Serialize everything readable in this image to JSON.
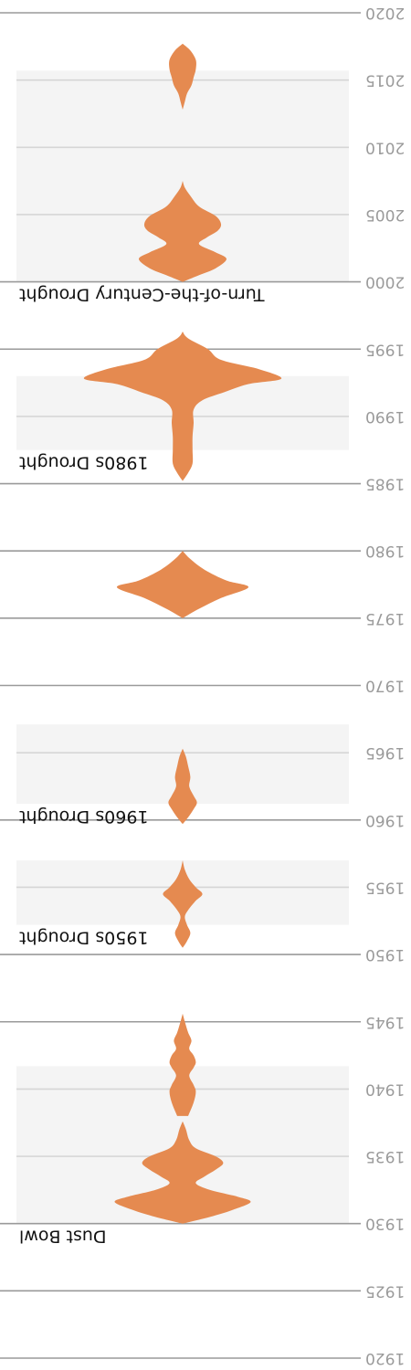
{
  "chart_data": {
    "type": "violin",
    "title": "",
    "xlabel": "",
    "ylabel": "",
    "orientation": "rotated-180",
    "axis": {
      "range": [
        1920,
        2020
      ],
      "ticks": [
        1920,
        1925,
        1930,
        1935,
        1940,
        1945,
        1950,
        1955,
        1960,
        1965,
        1970,
        1975,
        1980,
        1985,
        1990,
        1995,
        2000,
        2005,
        2010,
        2015,
        2020
      ],
      "tick_labels": [
        "1920",
        "1925",
        "1930",
        "1935",
        "1940",
        "1945",
        "1950",
        "1955",
        "1960",
        "1965",
        "1970",
        "1975",
        "1980",
        "1985",
        "1990",
        "1995",
        "2000",
        "2005",
        "2010",
        "2015",
        "2020"
      ]
    },
    "grid": true,
    "colors": {
      "violin": "#e58a50",
      "band": "#f4f4f4",
      "grid": "#9a9a9a",
      "band_grid": "#d6d6d6",
      "tick_text": "#9a9a9a",
      "label_text": "#111111"
    },
    "drought_periods": [
      {
        "label": "Dust Bowl",
        "start": 1930,
        "end": 1941.7
      },
      {
        "label": "1950s Drought",
        "start": 1952.2,
        "end": 1957
      },
      {
        "label": "1960s Drought",
        "start": 1961.2,
        "end": 1967.1
      },
      {
        "label": "1980s Drought",
        "start": 1987.5,
        "end": 1993
      },
      {
        "label": "Turn-of-the-Century Drought",
        "start": 2000,
        "end": 2015.7
      }
    ],
    "density": {
      "unit": "relative half-width",
      "points": [
        [
          1930,
          0
        ],
        [
          1930.5,
          0.25
        ],
        [
          1931,
          0.45
        ],
        [
          1931.6,
          0.62
        ],
        [
          1932,
          0.5
        ],
        [
          1932.5,
          0.25
        ],
        [
          1933,
          0.12
        ],
        [
          1933.5,
          0.2
        ],
        [
          1934,
          0.3
        ],
        [
          1934.5,
          0.37
        ],
        [
          1935,
          0.3
        ],
        [
          1935.6,
          0.12
        ],
        [
          1936.2,
          0.06
        ],
        [
          1937,
          0.03
        ],
        [
          1937.6,
          0
        ],
        [
          1938,
          0.05
        ],
        [
          1939,
          0.1
        ],
        [
          1939.8,
          0.12
        ],
        [
          1940.3,
          0.1
        ],
        [
          1941,
          0.06
        ],
        [
          1941.6,
          0.1
        ],
        [
          1942,
          0.12
        ],
        [
          1942.5,
          0.1
        ],
        [
          1943,
          0.06
        ],
        [
          1943.6,
          0.08
        ],
        [
          1944.2,
          0.05
        ],
        [
          1945,
          0.02
        ],
        [
          1945.6,
          0
        ],
        [
          1950.5,
          0
        ],
        [
          1951,
          0.04
        ],
        [
          1951.6,
          0.07
        ],
        [
          1952.2,
          0.04
        ],
        [
          1952.8,
          0.02
        ],
        [
          1953.3,
          0.05
        ],
        [
          1954,
          0.12
        ],
        [
          1954.5,
          0.18
        ],
        [
          1955,
          0.12
        ],
        [
          1955.6,
          0.06
        ],
        [
          1956.3,
          0.02
        ],
        [
          1957,
          0
        ],
        [
          1959.7,
          0
        ],
        [
          1960.2,
          0.05
        ],
        [
          1960.8,
          0.1
        ],
        [
          1961.3,
          0.13
        ],
        [
          1961.8,
          0.1
        ],
        [
          1962.5,
          0.06
        ],
        [
          1963.2,
          0.07
        ],
        [
          1964,
          0.05
        ],
        [
          1964.7,
          0.03
        ],
        [
          1965.3,
          0
        ],
        [
          1975,
          0
        ],
        [
          1975.7,
          0.15
        ],
        [
          1976.5,
          0.35
        ],
        [
          1977.3,
          0.6
        ],
        [
          1977.8,
          0.4
        ],
        [
          1978.6,
          0.2
        ],
        [
          1979.4,
          0.07
        ],
        [
          1980,
          0
        ],
        [
          1985.2,
          0
        ],
        [
          1985.8,
          0.05
        ],
        [
          1986.5,
          0.09
        ],
        [
          1987.5,
          0.09
        ],
        [
          1988.5,
          0.09
        ],
        [
          1989.5,
          0.1
        ],
        [
          1990.5,
          0.1
        ],
        [
          1991.2,
          0.18
        ],
        [
          1991.8,
          0.38
        ],
        [
          1992.4,
          0.6
        ],
        [
          1992.8,
          0.9
        ],
        [
          1993.5,
          0.7
        ],
        [
          1994.2,
          0.35
        ],
        [
          1995,
          0.23
        ],
        [
          1995.8,
          0.05
        ],
        [
          1996.3,
          0
        ],
        [
          2000,
          0
        ],
        [
          2000.5,
          0.15
        ],
        [
          2001,
          0.3
        ],
        [
          2001.7,
          0.4
        ],
        [
          2002.2,
          0.3
        ],
        [
          2002.8,
          0.15
        ],
        [
          2003.3,
          0.22
        ],
        [
          2003.8,
          0.32
        ],
        [
          2004.3,
          0.35
        ],
        [
          2004.9,
          0.3
        ],
        [
          2005.6,
          0.15
        ],
        [
          2006.4,
          0.07
        ],
        [
          2007,
          0.02
        ],
        [
          2007.5,
          0
        ],
        [
          2012.8,
          0
        ],
        [
          2013.4,
          0.02
        ],
        [
          2014,
          0.04
        ],
        [
          2014.6,
          0.08
        ],
        [
          2015.2,
          0.1
        ],
        [
          2015.8,
          0.12
        ],
        [
          2016.5,
          0.12
        ],
        [
          2017.2,
          0.07
        ],
        [
          2017.7,
          0
        ]
      ]
    }
  }
}
